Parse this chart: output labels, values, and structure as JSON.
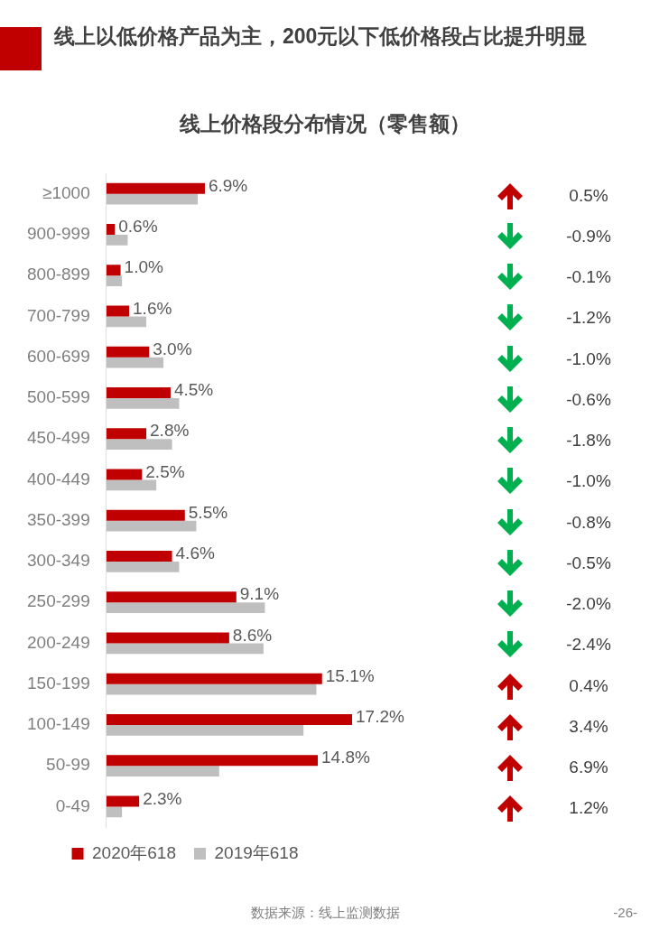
{
  "chart_data": {
    "type": "bar",
    "orientation": "horizontal",
    "title": "线上以低价格产品为主，200元以下低价格段占比提升明显",
    "subtitle": "线上价格段分布情况（零售额）",
    "categories": [
      "≥1000",
      "900-999",
      "800-899",
      "700-799",
      "600-699",
      "500-599",
      "450-499",
      "400-449",
      "350-399",
      "300-349",
      "250-299",
      "200-249",
      "150-199",
      "100-149",
      "50-99",
      "0-49"
    ],
    "series": [
      {
        "name": "2020年618",
        "color": "#c00000",
        "values": [
          6.9,
          0.6,
          1.0,
          1.6,
          3.0,
          4.5,
          2.8,
          2.5,
          5.5,
          4.6,
          9.1,
          8.6,
          15.1,
          17.2,
          14.8,
          2.3
        ],
        "value_labels": [
          "6.9%",
          "0.6%",
          "1.0%",
          "1.6%",
          "3.0%",
          "4.5%",
          "2.8%",
          "2.5%",
          "5.5%",
          "4.6%",
          "9.1%",
          "8.6%",
          "15.1%",
          "17.2%",
          "14.8%",
          "2.3%"
        ]
      },
      {
        "name": "2019年618",
        "color": "#bfbfbf",
        "values": [
          6.4,
          1.5,
          1.1,
          2.8,
          4.0,
          5.1,
          4.6,
          3.5,
          6.3,
          5.1,
          11.1,
          11.0,
          14.7,
          13.8,
          7.9,
          1.1
        ]
      }
    ],
    "legend": "bottom",
    "grid": false,
    "annotations": [
      "0.5%",
      "-0.9%",
      "-0.1%",
      "-1.2%",
      "-1.0%",
      "-0.6%",
      "-1.8%",
      "-1.0%",
      "-0.8%",
      "-0.5%",
      "-2.0%",
      "-2.4%",
      "0.4%",
      "3.4%",
      "6.9%",
      "1.2%",
      "数据来源：线上监测数据",
      "-26-"
    ]
  }
}
